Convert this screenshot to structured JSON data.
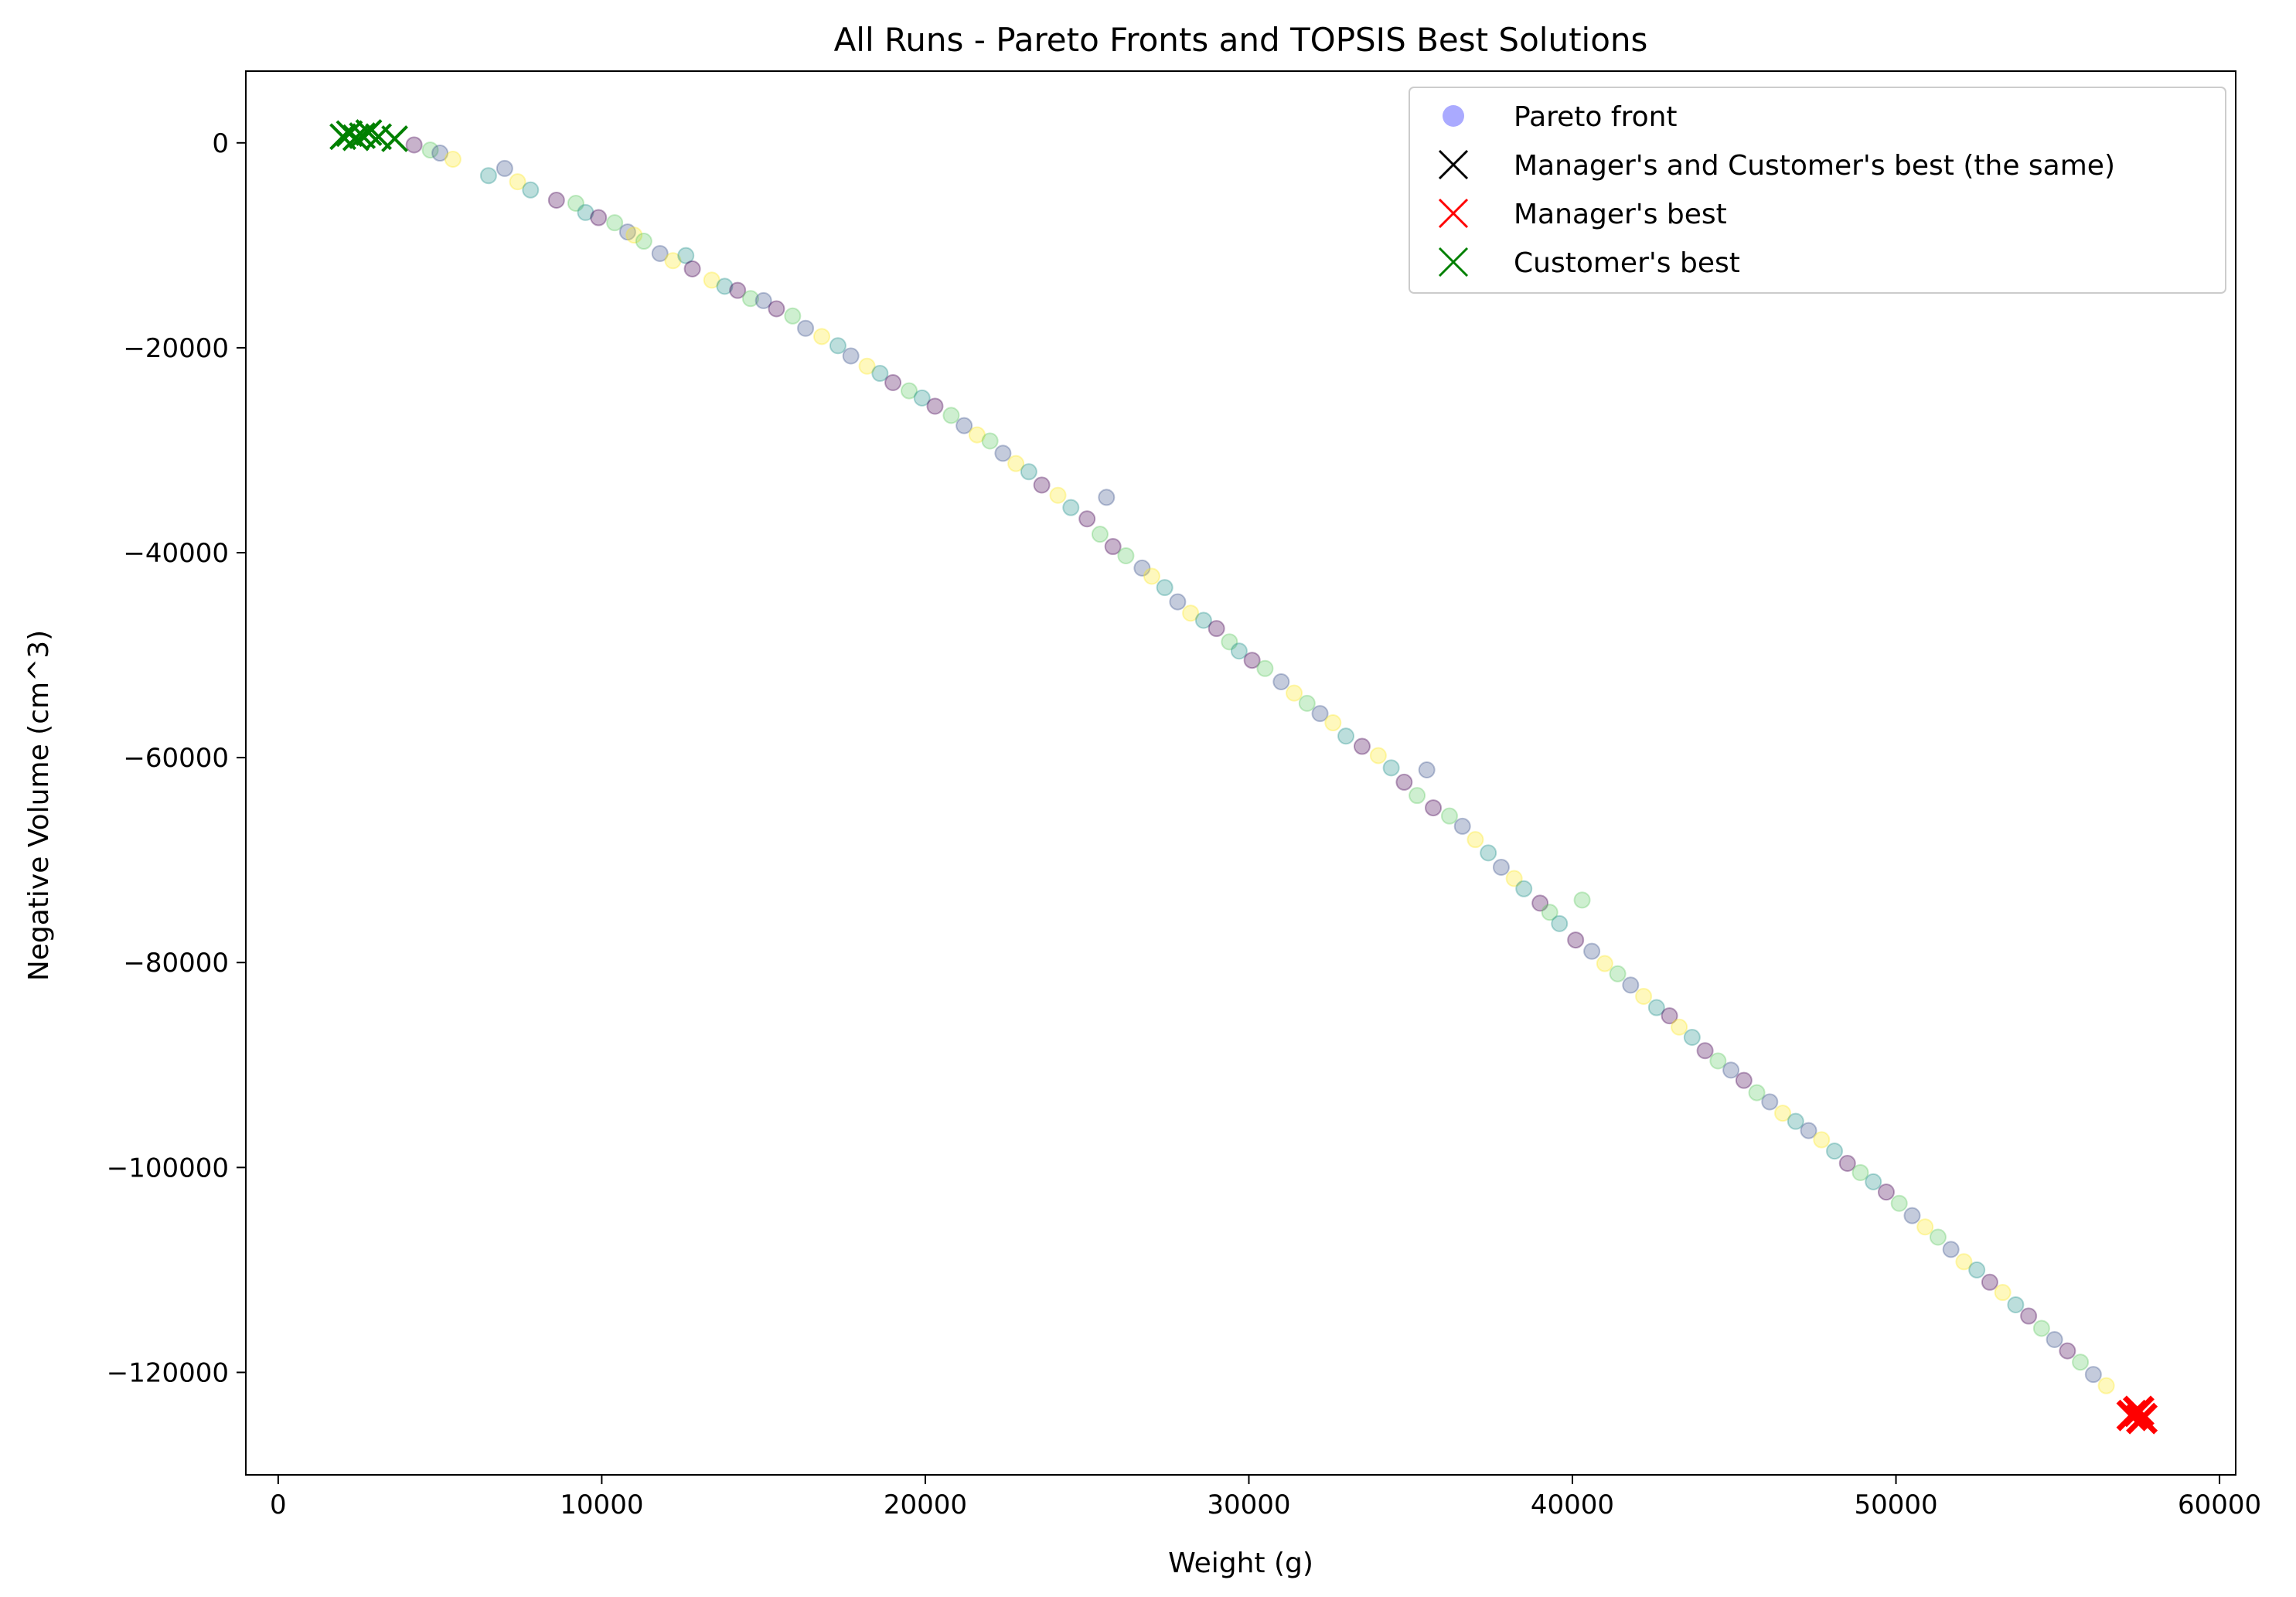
{
  "chart_data": {
    "type": "scatter",
    "title": "All Runs - Pareto Fronts and TOPSIS Best Solutions",
    "xlabel": "Weight (g)",
    "ylabel": "Negative Volume (cm^3)",
    "xlim": [
      -1000,
      60500
    ],
    "ylim": [
      -130000,
      7000
    ],
    "xticks": [
      0,
      10000,
      20000,
      30000,
      40000,
      50000,
      60000
    ],
    "xtick_labels": [
      "0",
      "10000",
      "20000",
      "30000",
      "40000",
      "50000",
      "60000"
    ],
    "yticks": [
      0,
      -20000,
      -40000,
      -60000,
      -80000,
      -100000,
      -120000
    ],
    "ytick_labels": [
      "0",
      "−20000",
      "−40000",
      "−60000",
      "−80000",
      "−100000",
      "−120000"
    ],
    "grid": false,
    "legend_position": "top-right",
    "legend": [
      {
        "label": "Pareto front",
        "marker": "circle",
        "color": "#aaaaff"
      },
      {
        "label": "Manager's and Customer's best (the same)",
        "marker": "x",
        "color": "#000000"
      },
      {
        "label": "Manager's best",
        "marker": "x",
        "color": "#ff0000"
      },
      {
        "label": "Customer's best",
        "marker": "x",
        "color": "#008000"
      }
    ],
    "series": [
      {
        "name": "Pareto front",
        "marker": "circle",
        "colors": [
          "#440154",
          "#3b528b",
          "#21918c",
          "#5ec962",
          "#fde725"
        ],
        "x": [
          4200,
          4700,
          5000,
          5400,
          6500,
          7000,
          7400,
          7800,
          8600,
          9200,
          9500,
          9900,
          10400,
          10800,
          11000,
          11300,
          11800,
          12200,
          12600,
          12800,
          13400,
          13800,
          14200,
          14600,
          15000,
          15400,
          15900,
          16300,
          16800,
          17300,
          17700,
          18200,
          18600,
          19000,
          19500,
          19900,
          20300,
          20800,
          21200,
          21600,
          22000,
          22400,
          22800,
          23200,
          23600,
          24100,
          24500,
          25000,
          25400,
          25600,
          25800,
          26200,
          26700,
          27000,
          27400,
          27800,
          28200,
          28600,
          29000,
          29400,
          29700,
          30100,
          30500,
          31000,
          31400,
          31800,
          32200,
          32600,
          33000,
          33500,
          34000,
          34400,
          34800,
          35200,
          35500,
          35700,
          36200,
          36600,
          37000,
          37400,
          37800,
          38200,
          38500,
          39000,
          39300,
          39600,
          40100,
          40300,
          40600,
          41000,
          41400,
          41800,
          42200,
          42600,
          43000,
          43300,
          43700,
          44100,
          44500,
          44900,
          45300,
          45700,
          46100,
          46500,
          46900,
          47300,
          47700,
          48100,
          48500,
          48900,
          49300,
          49700,
          50100,
          50500,
          50900,
          51300,
          51700,
          52100,
          52500,
          52900,
          53300,
          53700,
          54100,
          54500,
          54900,
          55300,
          55700,
          56100,
          56500
        ],
        "y": [
          -200,
          -700,
          -1000,
          -1600,
          -3200,
          -2500,
          -3800,
          -4600,
          -5600,
          -5900,
          -6800,
          -7300,
          -7800,
          -8700,
          -9000,
          -9600,
          -10800,
          -11500,
          -11000,
          -12300,
          -13400,
          -14000,
          -14400,
          -15200,
          -15400,
          -16200,
          -16900,
          -18100,
          -18900,
          -19800,
          -20800,
          -21800,
          -22500,
          -23400,
          -24200,
          -24900,
          -25700,
          -26600,
          -27600,
          -28500,
          -29100,
          -30300,
          -31300,
          -32100,
          -33400,
          -34400,
          -35600,
          -36700,
          -38200,
          -34600,
          -39400,
          -40300,
          -41500,
          -42300,
          -43400,
          -44800,
          -45900,
          -46600,
          -47400,
          -48700,
          -49600,
          -50500,
          -51300,
          -52600,
          -53700,
          -54700,
          -55700,
          -56600,
          -57900,
          -58900,
          -59800,
          -61000,
          -62400,
          -63700,
          -61200,
          -64900,
          -65700,
          -66700,
          -68000,
          -69300,
          -70700,
          -71800,
          -72800,
          -74200,
          -75100,
          -76200,
          -77800,
          -73900,
          -78900,
          -80100,
          -81100,
          -82200,
          -83300,
          -84400,
          -85200,
          -86300,
          -87300,
          -88600,
          -89600,
          -90500,
          -91500,
          -92700,
          -93600,
          -94700,
          -95500,
          -96400,
          -97300,
          -98400,
          -99600,
          -100500,
          -101400,
          -102400,
          -103500,
          -104700,
          -105800,
          -106800,
          -108000,
          -109200,
          -110000,
          -111200,
          -112200,
          -113400,
          -114500,
          -115700,
          -116800,
          -117900,
          -119000,
          -120200,
          -121300
        ]
      },
      {
        "name": "Manager's best",
        "marker": "x",
        "color": "#ff0000",
        "x": [
          57300,
          57500,
          57600
        ],
        "y": [
          -124200,
          -123800,
          -124500
        ]
      },
      {
        "name": "Customer's best",
        "marker": "x",
        "color": "#008000",
        "x": [
          2000,
          2200,
          2400,
          2600,
          2800,
          3100,
          3600
        ],
        "y": [
          600,
          900,
          500,
          700,
          1000,
          600,
          400
        ]
      }
    ]
  }
}
